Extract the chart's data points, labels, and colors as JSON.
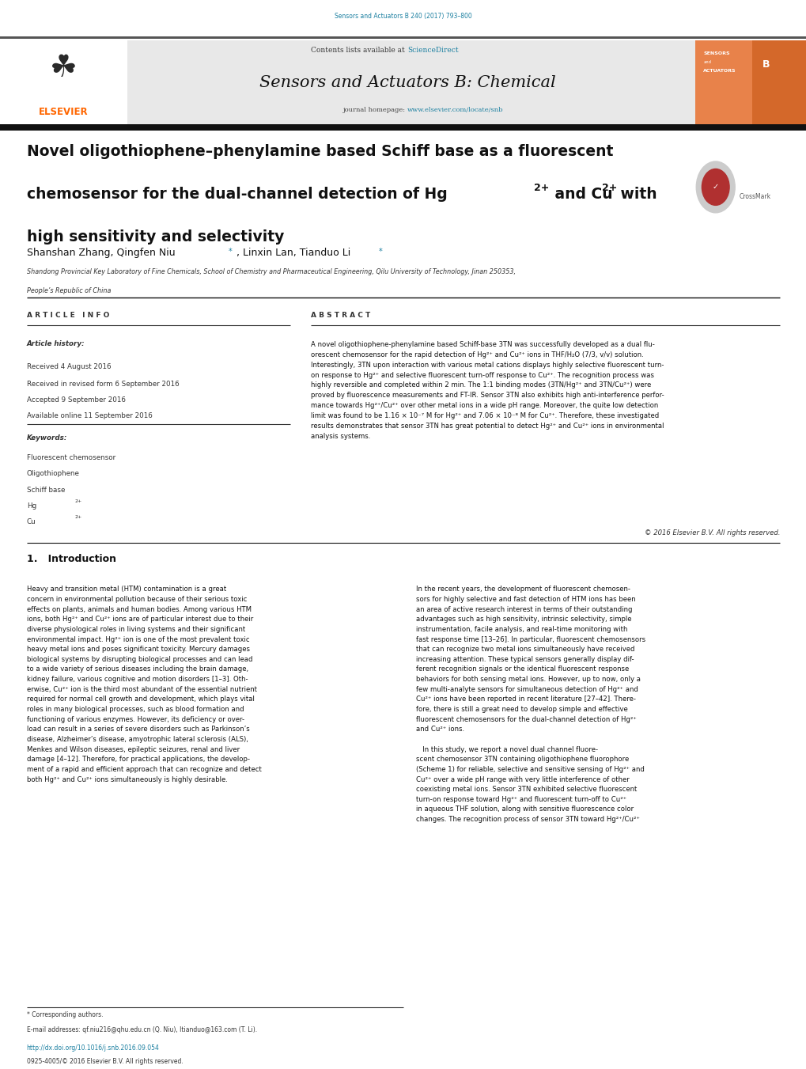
{
  "page_width": 10.2,
  "page_height": 13.51,
  "bg_color": "#ffffff",
  "top_journal_ref": "Sensors and Actuators B 240 (2017) 793–800",
  "top_journal_ref_color": "#1a7fa0",
  "header_bg": "#e8e8e8",
  "journal_title": "Sensors and Actuators B: Chemical",
  "journal_homepage_url": "www.elsevier.com/locate/snb",
  "journal_homepage_url_color": "#1a7fa0",
  "elsevier_color": "#ff6600",
  "affiliation": "Shandong Provincial Key Laboratory of Fine Chemicals, School of Chemistry and Pharmaceutical Engineering, Qilu University of Technology, Jinan 250353,",
  "affiliation2": "People’s Republic of China",
  "received1": "Received 4 August 2016",
  "received2": "Received in revised form 6 September 2016",
  "accepted": "Accepted 9 September 2016",
  "available": "Available online 11 September 2016",
  "keyword1": "Fluorescent chemosensor",
  "keyword2": "Oligothiophene",
  "keyword3": "Schiff base",
  "copyright": "© 2016 Elsevier B.V. All rights reserved.",
  "doi_text": "http://dx.doi.org/10.1016/j.snb.2016.09.054",
  "issn_text": "0925-4005/© 2016 Elsevier B.V. All rights reserved."
}
